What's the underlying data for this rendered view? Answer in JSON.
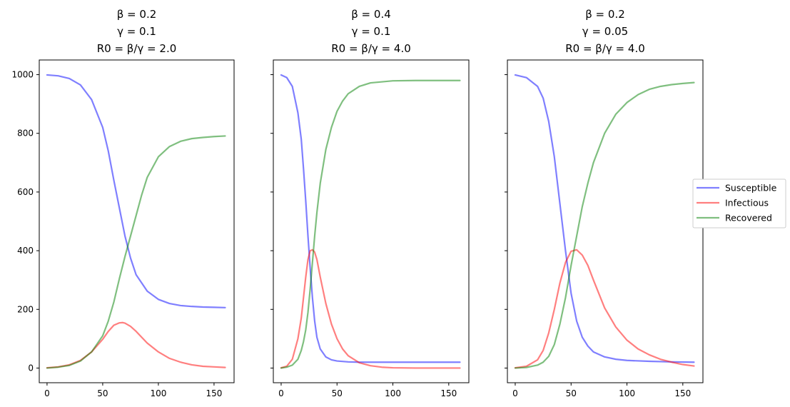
{
  "chart_data": [
    {
      "type": "line",
      "title_lines": [
        "β = 0.2",
        "γ = 0.1",
        "R0 = β/γ = 2.0"
      ],
      "xlim": [
        -7,
        168
      ],
      "ylim": [
        -50,
        1050
      ],
      "xticks": [
        0,
        50,
        100,
        150
      ],
      "yticks": [
        0,
        200,
        400,
        600,
        800,
        1000
      ],
      "show_yticklabels": true,
      "series": [
        {
          "name": "Susceptible",
          "color": "#0000ff",
          "x": [
            0,
            10,
            20,
            30,
            40,
            50,
            55,
            60,
            65,
            70,
            75,
            80,
            90,
            100,
            110,
            120,
            130,
            140,
            150,
            160
          ],
          "y": [
            999,
            996,
            987,
            965,
            915,
            820,
            740,
            640,
            545,
            450,
            375,
            318,
            262,
            234,
            220,
            213,
            210,
            208,
            207,
            206
          ]
        },
        {
          "name": "Infectious",
          "color": "#ff0000",
          "x": [
            0,
            10,
            20,
            30,
            40,
            50,
            55,
            60,
            65,
            68,
            70,
            75,
            80,
            90,
            100,
            110,
            120,
            130,
            140,
            150,
            160
          ],
          "y": [
            1,
            4,
            11,
            26,
            55,
            98,
            125,
            146,
            154,
            155,
            153,
            142,
            125,
            85,
            55,
            33,
            20,
            11,
            6,
            4,
            2
          ]
        },
        {
          "name": "Recovered",
          "color": "#008000",
          "x": [
            0,
            10,
            20,
            30,
            40,
            50,
            55,
            60,
            65,
            70,
            75,
            80,
            85,
            90,
            100,
            110,
            120,
            130,
            140,
            150,
            160
          ],
          "y": [
            0,
            3,
            9,
            24,
            55,
            110,
            160,
            225,
            305,
            380,
            450,
            520,
            590,
            650,
            720,
            755,
            773,
            782,
            786,
            789,
            791
          ]
        }
      ]
    },
    {
      "type": "line",
      "title_lines": [
        "β = 0.4",
        "γ = 0.1",
        "R0 = β/γ = 4.0"
      ],
      "xlim": [
        -7,
        168
      ],
      "ylim": [
        -50,
        1050
      ],
      "xticks": [
        0,
        50,
        100,
        150
      ],
      "yticks": [
        0,
        200,
        400,
        600,
        800,
        1000
      ],
      "show_yticklabels": false,
      "series": [
        {
          "name": "Susceptible",
          "color": "#0000ff",
          "x": [
            0,
            5,
            10,
            15,
            18,
            20,
            22,
            24,
            26,
            28,
            30,
            32,
            35,
            40,
            45,
            50,
            60,
            70,
            80,
            100,
            120,
            140,
            160
          ],
          "y": [
            999,
            990,
            960,
            870,
            780,
            680,
            570,
            450,
            340,
            240,
            160,
            105,
            65,
            38,
            28,
            24,
            21,
            20,
            20,
            20,
            20,
            20,
            20
          ]
        },
        {
          "name": "Infectious",
          "color": "#ff0000",
          "x": [
            0,
            5,
            10,
            15,
            18,
            20,
            22,
            24,
            26,
            28,
            30,
            32,
            35,
            40,
            45,
            50,
            55,
            60,
            70,
            80,
            90,
            100,
            120,
            140,
            160
          ],
          "y": [
            1,
            6,
            30,
            100,
            170,
            240,
            310,
            370,
            400,
            403,
            395,
            370,
            310,
            220,
            150,
            100,
            65,
            42,
            18,
            8,
            3,
            1,
            0,
            0,
            0
          ]
        },
        {
          "name": "Recovered",
          "color": "#008000",
          "x": [
            0,
            5,
            10,
            15,
            18,
            20,
            22,
            24,
            26,
            28,
            30,
            32,
            35,
            40,
            45,
            50,
            55,
            60,
            70,
            80,
            100,
            120,
            140,
            160
          ],
          "y": [
            0,
            3,
            10,
            30,
            60,
            90,
            130,
            190,
            270,
            360,
            450,
            530,
            630,
            745,
            820,
            875,
            910,
            935,
            960,
            972,
            979,
            980,
            980,
            980
          ]
        }
      ]
    },
    {
      "type": "line",
      "title_lines": [
        "β = 0.2",
        "γ = 0.05",
        "R0 = β/γ = 4.0"
      ],
      "xlim": [
        -7,
        168
      ],
      "ylim": [
        -50,
        1050
      ],
      "xticks": [
        0,
        50,
        100,
        150
      ],
      "yticks": [
        0,
        200,
        400,
        600,
        800,
        1000
      ],
      "show_yticklabels": false,
      "series": [
        {
          "name": "Susceptible",
          "color": "#0000ff",
          "x": [
            0,
            10,
            20,
            25,
            30,
            35,
            40,
            45,
            50,
            55,
            60,
            65,
            70,
            80,
            90,
            100,
            120,
            140,
            160
          ],
          "y": [
            999,
            990,
            960,
            920,
            840,
            720,
            560,
            400,
            255,
            160,
            105,
            75,
            55,
            38,
            30,
            26,
            23,
            21,
            20
          ]
        },
        {
          "name": "Infectious",
          "color": "#ff0000",
          "x": [
            0,
            10,
            20,
            25,
            30,
            35,
            40,
            45,
            50,
            55,
            60,
            65,
            70,
            80,
            90,
            100,
            110,
            120,
            130,
            140,
            150,
            160
          ],
          "y": [
            1,
            6,
            28,
            60,
            120,
            200,
            290,
            360,
            398,
            403,
            385,
            350,
            300,
            205,
            140,
            95,
            65,
            45,
            30,
            20,
            12,
            7
          ]
        },
        {
          "name": "Recovered",
          "color": "#008000",
          "x": [
            0,
            10,
            20,
            25,
            30,
            35,
            40,
            45,
            50,
            55,
            60,
            65,
            70,
            80,
            90,
            100,
            110,
            120,
            130,
            140,
            150,
            160
          ],
          "y": [
            0,
            2,
            10,
            20,
            40,
            80,
            150,
            240,
            350,
            450,
            550,
            630,
            700,
            800,
            865,
            905,
            932,
            950,
            960,
            966,
            970,
            973
          ]
        }
      ]
    }
  ],
  "legend": {
    "placement": "right",
    "entries": [
      {
        "label": "Susceptible",
        "color": "#0000ff"
      },
      {
        "label": "Infectious",
        "color": "#ff0000"
      },
      {
        "label": "Recovered",
        "color": "#008000"
      }
    ]
  }
}
